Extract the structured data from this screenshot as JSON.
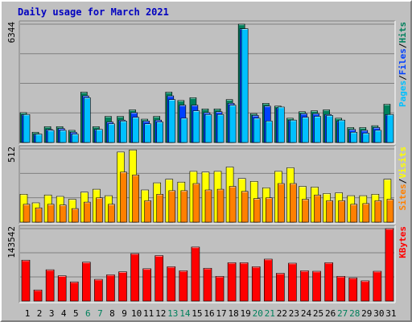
{
  "title": "Daily usage for March 2021",
  "colors": {
    "background": "#c0c0c0",
    "plot_background": "#c0c0c0",
    "gridline": "#808080",
    "title": "#0000c0",
    "hits": "#00805c",
    "files": "#0040ff",
    "pages": "#00c0ff",
    "visits": "#ffff00",
    "sites": "#ff8000",
    "kbytes": "#ff0000",
    "weekday_label": "#000000",
    "weekend_label": "#00805c"
  },
  "days": [
    "1",
    "2",
    "3",
    "4",
    "5",
    "6",
    "7",
    "8",
    "9",
    "10",
    "11",
    "12",
    "13",
    "14",
    "15",
    "16",
    "17",
    "18",
    "19",
    "20",
    "21",
    "22",
    "23",
    "24",
    "25",
    "26",
    "27",
    "28",
    "29",
    "30",
    "31"
  ],
  "weekend_days": [
    "6",
    "7",
    "13",
    "14",
    "20",
    "21",
    "27",
    "28"
  ],
  "chart_data": [
    {
      "type": "bar",
      "panel": "top",
      "axis_max_label": "6344",
      "ylim": [
        0,
        6344
      ],
      "legend": [
        {
          "text": "Pages",
          "color_key": "pages"
        },
        {
          "text": "/",
          "color_key": "weekday_label"
        },
        {
          "text": "Files",
          "color_key": "files"
        },
        {
          "text": "/",
          "color_key": "weekday_label"
        },
        {
          "text": "Hits",
          "color_key": "hits"
        }
      ],
      "series": [
        {
          "name": "Hits",
          "color_key": "hits",
          "values": [
            1600,
            550,
            850,
            850,
            650,
            2700,
            850,
            1400,
            1400,
            1750,
            1250,
            1400,
            2700,
            2250,
            2400,
            1800,
            1800,
            2300,
            6344,
            1550,
            2100,
            1950,
            1300,
            1650,
            1700,
            1750,
            1300,
            800,
            800,
            900,
            2050
          ]
        },
        {
          "name": "Files",
          "color_key": "files",
          "values": [
            1500,
            450,
            700,
            750,
            550,
            2500,
            700,
            1100,
            1200,
            1600,
            1150,
            1200,
            2500,
            2000,
            2000,
            1600,
            1650,
            2100,
            6100,
            1450,
            1950,
            1850,
            1200,
            1550,
            1550,
            1500,
            1150,
            700,
            650,
            800,
            1500
          ]
        },
        {
          "name": "Pages",
          "color_key": "pages",
          "values": [
            1500,
            450,
            650,
            650,
            450,
            2400,
            700,
            1000,
            1150,
            1350,
            1000,
            1100,
            2300,
            1300,
            1700,
            1500,
            1500,
            2000,
            6100,
            1300,
            1150,
            1900,
            1200,
            1350,
            1400,
            1450,
            1200,
            550,
            500,
            650,
            1500
          ]
        }
      ]
    },
    {
      "type": "bar",
      "panel": "middle",
      "axis_max_label": "512",
      "ylim": [
        0,
        512
      ],
      "legend": [
        {
          "text": "Sites",
          "color_key": "sites"
        },
        {
          "text": "/",
          "color_key": "weekday_label"
        },
        {
          "text": "Visits",
          "color_key": "visits"
        }
      ],
      "series": [
        {
          "name": "Visits",
          "color_key": "visits",
          "values": [
            195,
            135,
            190,
            180,
            160,
            210,
            230,
            185,
            490,
            505,
            225,
            275,
            300,
            280,
            355,
            350,
            355,
            385,
            305,
            285,
            240,
            355,
            380,
            250,
            245,
            200,
            205,
            185,
            185,
            195,
            300
          ]
        },
        {
          "name": "Sites",
          "color_key": "sites",
          "values": [
            125,
            100,
            125,
            120,
            95,
            140,
            170,
            125,
            350,
            330,
            150,
            195,
            220,
            220,
            270,
            225,
            230,
            250,
            215,
            165,
            170,
            270,
            270,
            160,
            190,
            150,
            150,
            125,
            130,
            150,
            160
          ]
        }
      ]
    },
    {
      "type": "bar",
      "panel": "bottom",
      "axis_max_label": "143542",
      "ylim": [
        0,
        143542
      ],
      "legend": [
        {
          "text": "KBytes",
          "color_key": "kbytes"
        }
      ],
      "series": [
        {
          "name": "KBytes",
          "color_key": "kbytes",
          "values": [
            81000,
            22000,
            62000,
            50000,
            38000,
            77000,
            43000,
            52000,
            58000,
            94000,
            64000,
            90000,
            68000,
            60000,
            107000,
            65000,
            49000,
            76000,
            76000,
            68000,
            83000,
            55000,
            75000,
            60000,
            59000,
            76000,
            49000,
            46000,
            40000,
            59000,
            143542
          ]
        }
      ]
    }
  ]
}
